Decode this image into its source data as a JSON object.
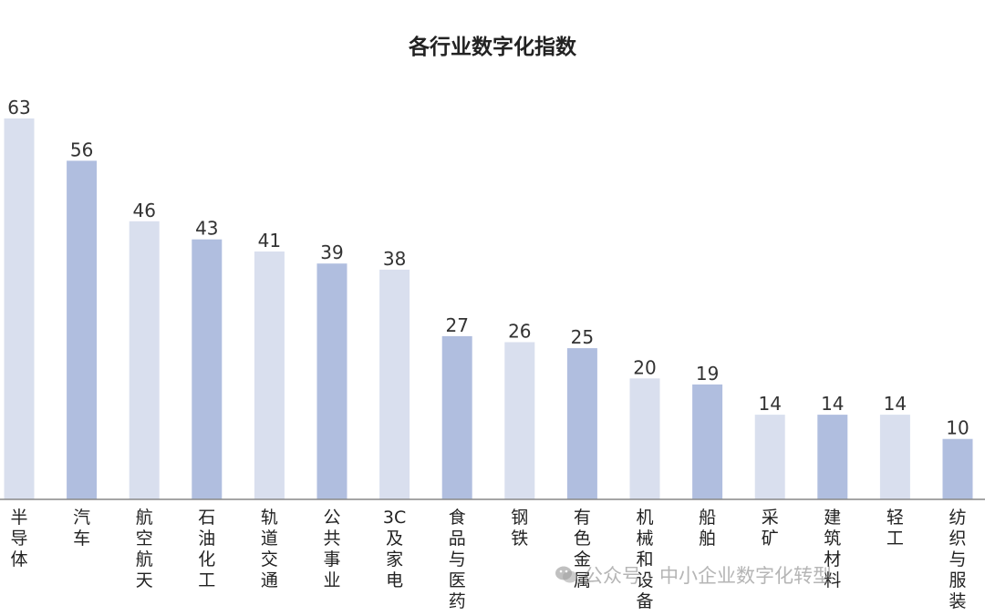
{
  "chart_data": {
    "type": "bar",
    "title": "各行业数字化指数",
    "categories": [
      "半导体",
      "汽车",
      "航空航天",
      "石油化工",
      "轨道交通",
      "公共事业",
      "3C及家电",
      "食品与医药",
      "钢铁",
      "有色金属",
      "机械和设备",
      "船舶",
      "采矿",
      "建筑材料",
      "轻工",
      "纺织与服装"
    ],
    "values": [
      63,
      56,
      46,
      43,
      41,
      39,
      38,
      27,
      26,
      25,
      20,
      19,
      14,
      14,
      14,
      10
    ],
    "xlabel": "",
    "ylabel": "",
    "ylim": [
      0,
      66
    ],
    "grid": false,
    "legend": "none",
    "colors": [
      "#d9dfee",
      "#b0bedf"
    ]
  },
  "watermark": "公众号 · 中小企业数字化转型"
}
